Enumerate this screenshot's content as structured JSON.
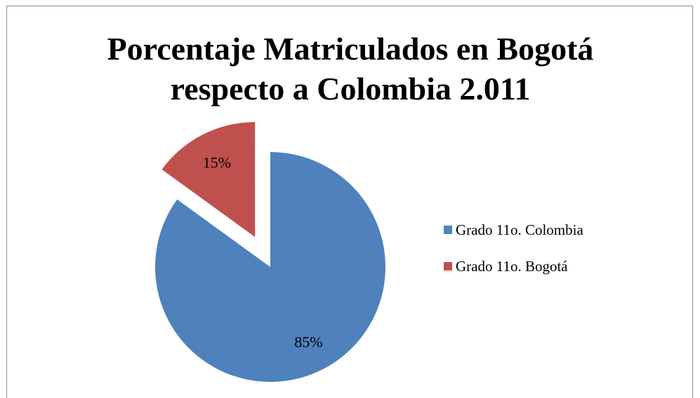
{
  "chart_data": {
    "type": "pie",
    "title_lines": [
      "Porcentaje Matriculados en Bogotá",
      "respecto a Colombia 2.011"
    ],
    "slices": [
      {
        "name": "Grado 11o. Colombia",
        "value": 85,
        "label": "85%",
        "color": "#4f81bd"
      },
      {
        "name": "Grado 11o. Bogotá",
        "value": 15,
        "label": "15%",
        "color": "#c0504d",
        "exploded": true
      }
    ],
    "legend_position": "right",
    "legend": [
      {
        "label": "Grado 11o. Colombia",
        "color": "#4f81bd"
      },
      {
        "label": "Grado 11o. Bogotá",
        "color": "#c0504d"
      }
    ]
  }
}
